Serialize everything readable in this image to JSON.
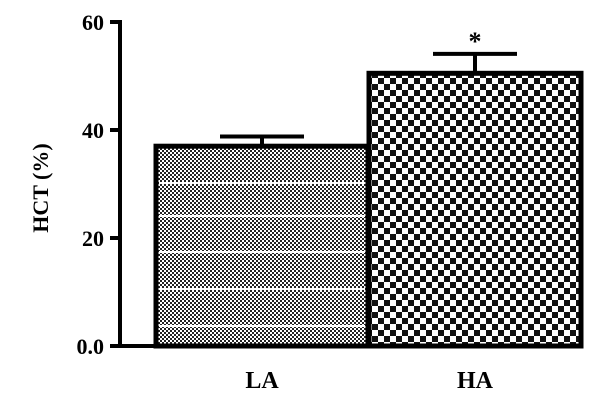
{
  "chart_data": {
    "type": "bar",
    "categories": [
      "LA",
      "HA"
    ],
    "values": [
      37,
      50.5
    ],
    "errors": [
      1.8,
      3.6
    ],
    "annotations": [
      "",
      "*"
    ],
    "ylabel": "HCT (%)",
    "ylim": [
      0,
      60
    ],
    "yticks": [
      0,
      20,
      40,
      60
    ],
    "ytick_labels": [
      "0.0",
      "20",
      "40",
      "60"
    ],
    "grid": false
  }
}
